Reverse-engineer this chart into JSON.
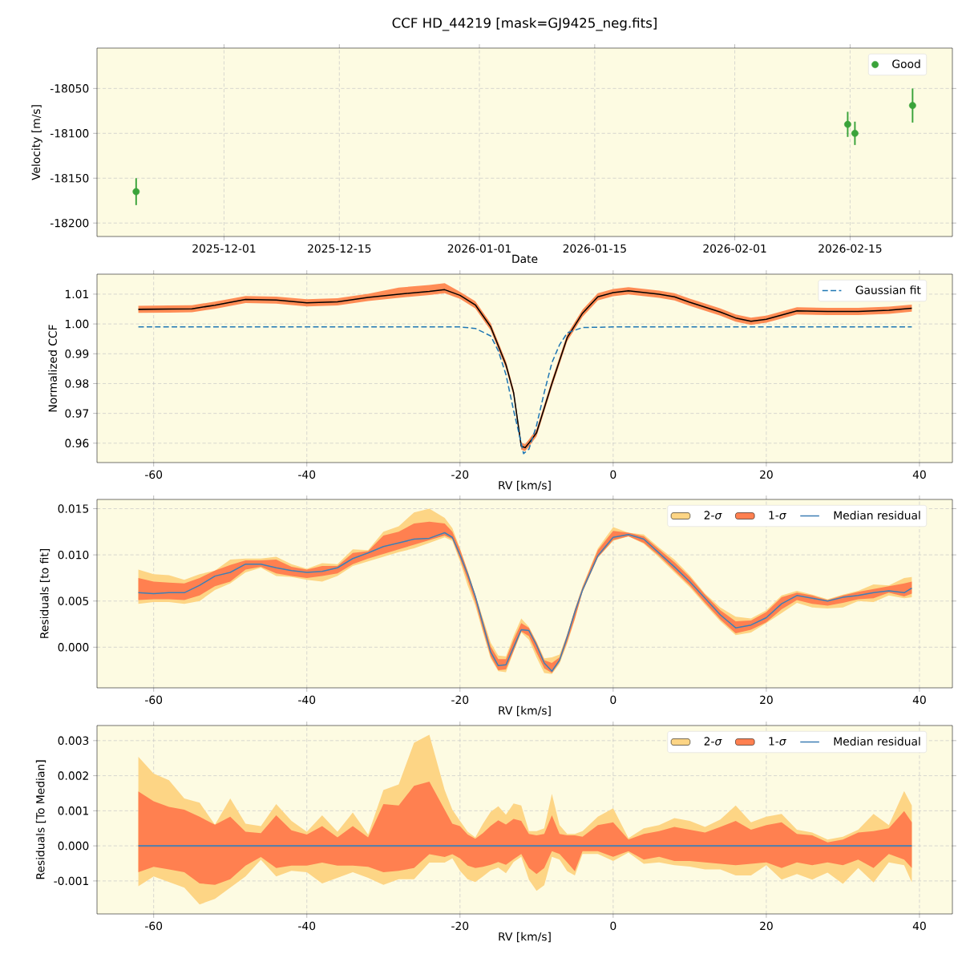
{
  "chart_data": [
    {
      "type": "scatter",
      "title": "CCF HD_44219 [mask=GJ9425_neg.fits]",
      "xlabel": "Date",
      "ylabel": "Velocity [m/s]",
      "x": [
        "2025-11-20T08:00",
        "2026-02-14T17:00",
        "2026-02-15T14:00",
        "2026-02-22T14:00"
      ],
      "series": [
        {
          "name": "Good",
          "color": "#3aa33a",
          "values": [
            -18165,
            -18090,
            -18100,
            -18069
          ],
          "errors": [
            15,
            14,
            13,
            19
          ]
        }
      ],
      "xlim": [
        "2025-11-15T14:00",
        "2026-02-27T10:00"
      ],
      "xticks": [
        "2025-12-01",
        "2025-12-15",
        "2026-01-01",
        "2026-01-15",
        "2026-02-01",
        "2026-02-15"
      ],
      "ylim": [
        -18215,
        -18005
      ],
      "yticks": [
        -18200,
        -18150,
        -18100,
        -18050
      ],
      "grid": true,
      "legend": "top right",
      "marker": "circle"
    },
    {
      "type": "line",
      "xlabel": "RV [km/s]",
      "ylabel": "Normalized CCF",
      "series": [
        {
          "type": "line",
          "color": "#ff8c55",
          "values": [
            null,
            null,
            null,
            null,
            null,
            null,
            null,
            null,
            null,
            null,
            null,
            null,
            null,
            null,
            null,
            null,
            null,
            null,
            null,
            null,
            null,
            null,
            null,
            null,
            null,
            null,
            null,
            null,
            null,
            null,
            null,
            null,
            null,
            null,
            null,
            null,
            null,
            null,
            null
          ],
          "x": [
            -62,
            -58,
            -55,
            -52,
            -48,
            -44,
            -40,
            -36,
            -32,
            -28,
            -24,
            -22,
            -20,
            -18,
            -16,
            -14,
            -13,
            -12,
            -11.5,
            -11,
            -10,
            -8,
            -6,
            -4,
            -2,
            0,
            2,
            6,
            8,
            10,
            14,
            16,
            18,
            20,
            24,
            28,
            32,
            36,
            39
          ],
          "lower": [
            1.0037,
            1.0038,
            1.0039,
            1.0051,
            1.007,
            1.0068,
            1.0059,
            1.0062,
            1.0077,
            1.0088,
            1.0097,
            1.0103,
            1.0084,
            1.0052,
            0.9979,
            0.9851,
            0.9758,
            0.9578,
            0.9573,
            0.9588,
            0.9623,
            0.9788,
            0.9942,
            1.0024,
            1.0079,
            1.0093,
            1.0099,
            1.0088,
            1.0079,
            1.0061,
            1.0028,
            1.0008,
            0.9997,
            1.0004,
            1.0032,
            1.003,
            1.003,
            1.0034,
            1.0041
          ],
          "upper": [
            1.0061,
            1.0062,
            1.0063,
            1.0075,
            1.0094,
            1.0092,
            1.0083,
            1.0086,
            1.0101,
            1.0122,
            1.0131,
            1.0137,
            1.0108,
            1.0076,
            1.0003,
            0.9875,
            0.9782,
            0.9602,
            0.9597,
            0.9612,
            0.9647,
            0.9812,
            0.9966,
            1.0048,
            1.0103,
            1.0117,
            1.0123,
            1.0112,
            1.0103,
            1.0085,
            1.0052,
            1.0032,
            1.0021,
            1.0028,
            1.0056,
            1.0054,
            1.0054,
            1.0058,
            1.0065
          ]
        },
        {
          "type": "line",
          "color": "#000000",
          "x": [
            -62,
            -58,
            -55,
            -52,
            -48,
            -44,
            -40,
            -36,
            -32,
            -28,
            -24,
            -22,
            -20,
            -18,
            -16,
            -14,
            -13,
            -12,
            -11.5,
            -11,
            -10,
            -8,
            -6,
            -4,
            -2,
            0,
            2,
            6,
            8,
            10,
            14,
            16,
            18,
            20,
            24,
            28,
            32,
            36,
            39
          ],
          "values": [
            1.0049,
            1.005,
            1.0051,
            1.0063,
            1.0082,
            1.008,
            1.0071,
            1.0074,
            1.0089,
            1.01,
            1.0109,
            1.0115,
            1.0096,
            1.0064,
            0.9991,
            0.9863,
            0.977,
            0.959,
            0.9585,
            0.96,
            0.9635,
            0.98,
            0.9954,
            1.0036,
            1.0091,
            1.0105,
            1.0111,
            1.01,
            1.0091,
            1.0073,
            1.004,
            1.002,
            1.0009,
            1.0016,
            1.0044,
            1.0042,
            1.0042,
            1.0046,
            1.0053
          ]
        },
        {
          "name": "Gaussian fit",
          "type": "line",
          "color": "#1f77b4",
          "line_style": "dashed",
          "x": [
            -62,
            -20,
            -18,
            -16,
            -15,
            -14,
            -13,
            -12,
            -11.7,
            -11,
            -10,
            -9,
            -8,
            -7,
            -6,
            -4,
            0,
            39
          ],
          "values": [
            0.999,
            0.999,
            0.9985,
            0.996,
            0.991,
            0.983,
            0.971,
            0.96,
            0.9565,
            0.958,
            0.966,
            0.977,
            0.987,
            0.993,
            0.997,
            0.9988,
            0.999,
            0.999
          ]
        }
      ],
      "xlim": [
        -67.4,
        44.3
      ],
      "xticks": [
        -60,
        -40,
        -20,
        0,
        20,
        40
      ],
      "ylim": [
        0.9535,
        1.0167
      ],
      "yticks": [
        0.96,
        0.97,
        0.98,
        0.99,
        {
          "value": 1.0,
          "label": "1.00"
        },
        1.01
      ],
      "grid": true,
      "legend": "top right"
    },
    {
      "type": "line",
      "xlabel": "RV [km/s]",
      "ylabel": "Residuals [to fit]",
      "x": [
        -62,
        -60,
        -58,
        -56,
        -54,
        -52,
        -50,
        -48,
        -46,
        -44,
        -42,
        -40,
        -38,
        -36,
        -34,
        -32,
        -30,
        -28,
        -26,
        -24,
        -22,
        -21,
        -20,
        -19,
        -18,
        -17,
        -16,
        -15,
        -14,
        -13,
        -12,
        -11,
        -10,
        -9,
        -8,
        -7,
        -6,
        -5,
        -4,
        -2,
        0,
        2,
        4,
        6,
        8,
        10,
        12,
        14,
        16,
        18,
        20,
        22,
        24,
        26,
        28,
        30,
        32,
        34,
        36,
        38,
        39
      ],
      "series": [
        {
          "name": "2-*σ*",
          "type": "line",
          "color": "#fdd585",
          "values": [
            null,
            null,
            null,
            null,
            null,
            null,
            null,
            null,
            null,
            null,
            null,
            null,
            null,
            null,
            null,
            null,
            null,
            null,
            null,
            null,
            null,
            null,
            null,
            null,
            null,
            null,
            null,
            null,
            null,
            null,
            null,
            null,
            null,
            null,
            null,
            null,
            null,
            null,
            null,
            null,
            null,
            null,
            null,
            null,
            null,
            null,
            null,
            null,
            null,
            null,
            null,
            null,
            null,
            null,
            null,
            null,
            null,
            null,
            null,
            null,
            null
          ],
          "upper": [
            0.0084,
            0.0079,
            0.0078,
            0.0073,
            0.0079,
            0.0083,
            0.0095,
            0.0096,
            0.0096,
            0.0098,
            0.009,
            0.0085,
            0.0091,
            0.009,
            0.0106,
            0.0105,
            0.0125,
            0.0131,
            0.0146,
            0.015,
            0.014,
            0.0129,
            0.0107,
            0.0083,
            0.0057,
            0.0031,
            0.0005,
            -0.0009,
            -0.001,
            0.0012,
            0.0031,
            0.0022,
            0.0006,
            -0.0012,
            -0.0011,
            -0.0008,
            0.0014,
            0.0041,
            0.0066,
            0.0107,
            0.013,
            0.0124,
            0.0122,
            0.0108,
            0.0095,
            0.0078,
            0.0058,
            0.0043,
            0.0033,
            0.0031,
            0.004,
            0.0056,
            0.0061,
            0.0057,
            0.0052,
            0.0057,
            0.0061,
            0.0068,
            0.0067,
            0.0075,
            0.0076
          ],
          "lower": [
            0.0047,
            0.0049,
            0.0049,
            0.0047,
            0.005,
            0.0062,
            0.0069,
            0.0081,
            0.0086,
            0.0077,
            0.0076,
            0.0073,
            0.0071,
            0.0077,
            0.0088,
            0.0093,
            0.0098,
            0.0103,
            0.0107,
            0.0113,
            0.0119,
            0.0115,
            0.0093,
            0.0067,
            0.0045,
            0.0016,
            -0.0012,
            -0.0026,
            -0.0027,
            -0.0005,
            0.0016,
            0.0008,
            -0.0011,
            -0.0028,
            -0.0029,
            -0.0018,
            0.0004,
            0.003,
            0.006,
            0.0097,
            0.0115,
            0.012,
            0.0112,
            0.0097,
            0.0081,
            0.0065,
            0.0046,
            0.0028,
            0.0013,
            0.0016,
            0.0026,
            0.0037,
            0.0048,
            0.0043,
            0.0042,
            0.0043,
            0.005,
            0.0049,
            0.0056,
            0.0053,
            0.0054
          ]
        },
        {
          "name": "1-*σ*",
          "type": "line",
          "color": "#ff8050",
          "values": [
            null,
            null,
            null,
            null,
            null,
            null,
            null,
            null,
            null,
            null,
            null,
            null,
            null,
            null,
            null,
            null,
            null,
            null,
            null,
            null,
            null,
            null,
            null,
            null,
            null,
            null,
            null,
            null,
            null,
            null,
            null,
            null,
            null,
            null,
            null,
            null,
            null,
            null,
            null,
            null,
            null,
            null,
            null,
            null,
            null,
            null,
            null,
            null,
            null,
            null,
            null,
            null,
            null,
            null,
            null,
            null,
            null,
            null,
            null,
            null,
            null
          ],
          "upper": [
            0.0075,
            0.0071,
            0.007,
            0.0069,
            0.0075,
            0.0083,
            0.0089,
            0.0094,
            0.0094,
            0.0095,
            0.0087,
            0.0084,
            0.0088,
            0.0088,
            0.0102,
            0.0104,
            0.0121,
            0.0125,
            0.0134,
            0.0136,
            0.0134,
            0.0125,
            0.0106,
            0.0082,
            0.0057,
            0.0029,
            0.0001,
            -0.0013,
            -0.0013,
            0.0008,
            0.0026,
            0.0021,
            0.0005,
            -0.0014,
            -0.0017,
            -0.0011,
            0.0014,
            0.0041,
            0.0065,
            0.0105,
            0.0126,
            0.0124,
            0.012,
            0.0106,
            0.0092,
            0.0076,
            0.0057,
            0.004,
            0.0028,
            0.0029,
            0.0038,
            0.0054,
            0.0059,
            0.0056,
            0.0051,
            0.0056,
            0.006,
            0.0063,
            0.0066,
            0.0069,
            0.0071
          ],
          "lower": [
            0.0051,
            0.0052,
            0.0052,
            0.0051,
            0.0056,
            0.0066,
            0.0071,
            0.0084,
            0.0087,
            0.008,
            0.0077,
            0.0075,
            0.0077,
            0.008,
            0.009,
            0.0096,
            0.0101,
            0.0106,
            0.0111,
            0.0116,
            0.0121,
            0.0117,
            0.0096,
            0.0073,
            0.0049,
            0.0019,
            -0.001,
            -0.0025,
            -0.0024,
            -0.0004,
            0.0017,
            0.0012,
            -0.0006,
            -0.0023,
            -0.0028,
            -0.0016,
            0.0006,
            0.0031,
            0.006,
            0.0097,
            0.0116,
            0.012,
            0.0113,
            0.0099,
            0.0083,
            0.0067,
            0.0048,
            0.003,
            0.0015,
            0.0019,
            0.0027,
            0.0041,
            0.0051,
            0.0047,
            0.0045,
            0.0048,
            0.0052,
            0.0053,
            0.0059,
            0.0055,
            0.0058
          ]
        },
        {
          "name": "Median residual",
          "type": "line",
          "color": "#3f7fb5",
          "values": [
            0.0059,
            0.0058,
            0.0059,
            0.0059,
            0.0067,
            0.0077,
            0.0081,
            0.009,
            0.009,
            0.0086,
            0.0083,
            0.0081,
            0.0082,
            0.0086,
            0.0096,
            0.0102,
            0.0109,
            0.0113,
            0.0117,
            0.0118,
            0.0124,
            0.0119,
            0.01,
            0.0079,
            0.0055,
            0.0025,
            -0.0005,
            -0.002,
            -0.0019,
            0.0,
            0.0019,
            0.0018,
            0.0002,
            -0.0017,
            -0.0026,
            -0.0014,
            0.0011,
            0.0038,
            0.0062,
            0.0099,
            0.0119,
            0.0122,
            0.0117,
            0.0102,
            0.0087,
            0.0071,
            0.0053,
            0.0035,
            0.0021,
            0.0024,
            0.0032,
            0.0047,
            0.0056,
            0.0053,
            0.005,
            0.0054,
            0.0056,
            0.0059,
            0.0061,
            0.0059,
            0.0064
          ]
        }
      ],
      "xlim": [
        -67.4,
        44.3
      ],
      "xticks": [
        -60,
        -40,
        -20,
        0,
        20,
        40
      ],
      "ylim": [
        -0.0044,
        0.016
      ],
      "yticks": [
        {
          "value": 0.0,
          "label": "0.000"
        },
        0.005,
        {
          "value": 0.01,
          "label": "0.010"
        },
        0.015
      ],
      "grid": true,
      "legend": "top right"
    },
    {
      "type": "line",
      "xlabel": "RV [km/s]",
      "ylabel": "Residuals [To Median]",
      "x": [
        -62,
        -60,
        -58,
        -56,
        -54,
        -52,
        -50,
        -48,
        -46,
        -44,
        -42,
        -40,
        -38,
        -36,
        -34,
        -32,
        -30,
        -28,
        -26,
        -24,
        -22,
        -21,
        -20,
        -19,
        -18,
        -17,
        -16,
        -15,
        -14,
        -13,
        -12,
        -11,
        -10,
        -9,
        -8,
        -7,
        -6,
        -5,
        -4,
        -2,
        0,
        2,
        4,
        6,
        8,
        10,
        12,
        14,
        16,
        18,
        20,
        22,
        24,
        26,
        28,
        30,
        32,
        34,
        36,
        38,
        39
      ],
      "series": [
        {
          "name": "2-*σ*",
          "type": "line",
          "color": "#fdd585",
          "values": [
            null,
            null,
            null,
            null,
            null,
            null,
            null,
            null,
            null,
            null,
            null,
            null,
            null,
            null,
            null,
            null,
            null,
            null,
            null,
            null,
            null,
            null,
            null,
            null,
            null,
            null,
            null,
            null,
            null,
            null,
            null,
            null,
            null,
            null,
            null,
            null,
            null,
            null,
            null,
            null,
            null,
            null,
            null,
            null,
            null,
            null,
            null,
            null,
            null,
            null,
            null,
            null,
            null,
            null,
            null,
            null,
            null,
            null,
            null,
            null,
            null
          ],
          "upper": [
            0.00254,
            0.00206,
            0.00187,
            0.00135,
            0.00123,
            0.0006,
            0.00135,
            0.00063,
            0.00056,
            0.00119,
            0.00071,
            0.0004,
            0.00087,
            0.0004,
            0.00095,
            0.00032,
            0.00159,
            0.00175,
            0.00294,
            0.00317,
            0.00159,
            0.00103,
            0.00071,
            0.0004,
            0.00024,
            0.00063,
            0.00097,
            0.00113,
            0.00089,
            0.00121,
            0.00115,
            0.00042,
            0.00042,
            0.0005,
            0.00148,
            0.00059,
            0.00034,
            0.00034,
            0.00042,
            0.00083,
            0.00107,
            0.00022,
            0.0005,
            0.00059,
            0.00079,
            0.00071,
            0.00054,
            0.00075,
            0.00115,
            0.00067,
            0.00083,
            0.00091,
            0.00046,
            0.00038,
            0.00018,
            0.00026,
            0.00046,
            0.00091,
            0.00059,
            0.00156,
            0.00115
          ],
          "lower": [
            -0.00115,
            -0.00087,
            -0.00103,
            -0.00119,
            -0.00167,
            -0.00151,
            -0.00119,
            -0.00087,
            -0.0004,
            -0.00087,
            -0.00071,
            -0.00075,
            -0.00107,
            -0.00091,
            -0.00075,
            -0.00091,
            -0.00111,
            -0.00095,
            -0.00095,
            -0.00048,
            -0.00048,
            -0.00036,
            -0.00071,
            -0.00095,
            -0.00103,
            -0.00087,
            -0.0007,
            -0.00062,
            -0.00078,
            -0.00046,
            -0.00031,
            -0.00096,
            -0.00128,
            -0.00112,
            -0.00031,
            -0.00039,
            -0.00072,
            -0.00084,
            -0.00023,
            -0.00023,
            -0.00043,
            -0.00019,
            -0.00051,
            -0.00047,
            -0.00055,
            -0.00059,
            -0.00067,
            -0.00067,
            -0.00084,
            -0.00084,
            -0.00055,
            -0.00096,
            -0.0008,
            -0.00096,
            -0.00076,
            -0.00108,
            -0.00063,
            -0.00104,
            -0.00047,
            -0.00055,
            -0.00104
          ]
        },
        {
          "name": "1-*σ*",
          "type": "line",
          "color": "#ff8050",
          "values": [
            null,
            null,
            null,
            null,
            null,
            null,
            null,
            null,
            null,
            null,
            null,
            null,
            null,
            null,
            null,
            null,
            null,
            null,
            null,
            null,
            null,
            null,
            null,
            null,
            null,
            null,
            null,
            null,
            null,
            null,
            null,
            null,
            null,
            null,
            null,
            null,
            null,
            null,
            null,
            null,
            null,
            null,
            null,
            null,
            null,
            null,
            null,
            null,
            null,
            null,
            null,
            null,
            null,
            null,
            null,
            null,
            null,
            null,
            null,
            null,
            null
          ],
          "upper": [
            0.00155,
            0.00127,
            0.00111,
            0.00103,
            0.00083,
            0.0006,
            0.00083,
            0.0004,
            0.00036,
            0.00087,
            0.00044,
            0.00032,
            0.00056,
            0.00024,
            0.00056,
            0.00024,
            0.00119,
            0.00115,
            0.00171,
            0.00183,
            0.00103,
            0.00063,
            0.00056,
            0.00032,
            0.0002,
            0.00036,
            0.00057,
            0.00073,
            0.00061,
            0.00077,
            0.00071,
            0.00034,
            0.0003,
            0.00034,
            0.00087,
            0.00034,
            0.0003,
            0.0003,
            0.00026,
            0.00059,
            0.00067,
            0.00018,
            0.00034,
            0.00042,
            0.00054,
            0.00046,
            0.00038,
            0.00054,
            0.00071,
            0.00046,
            0.00059,
            0.00067,
            0.00034,
            0.0003,
            0.0001,
            0.00018,
            0.00038,
            0.00042,
            0.0005,
            0.00099,
            0.00067
          ],
          "lower": [
            -0.00075,
            -0.0006,
            -0.00067,
            -0.00075,
            -0.00107,
            -0.00111,
            -0.00095,
            -0.00056,
            -0.00032,
            -0.00063,
            -0.00056,
            -0.00056,
            -0.00048,
            -0.00056,
            -0.00056,
            -0.0006,
            -0.00075,
            -0.00071,
            -0.00063,
            -0.00024,
            -0.00032,
            -0.00024,
            -0.00036,
            -0.00056,
            -0.00063,
            -0.0006,
            -0.00054,
            -0.00046,
            -0.00054,
            -0.00038,
            -0.00023,
            -0.00063,
            -0.0008,
            -0.00063,
            -0.00015,
            -0.00023,
            -0.00047,
            -0.00072,
            -0.00015,
            -0.00015,
            -0.00031,
            -0.00015,
            -0.00039,
            -0.00031,
            -0.00043,
            -0.00043,
            -0.00047,
            -0.00051,
            -0.00055,
            -0.00051,
            -0.00047,
            -0.00063,
            -0.00047,
            -0.00055,
            -0.00047,
            -0.00055,
            -0.00039,
            -0.00063,
            -0.00023,
            -0.00039,
            -0.00063
          ]
        },
        {
          "name": "Median residual",
          "type": "line",
          "color": "#3f7fb5",
          "x": [
            -62,
            39
          ],
          "values": [
            0,
            0
          ]
        }
      ],
      "xlim": [
        -67.4,
        44.3
      ],
      "xticks": [
        -60,
        -40,
        -20,
        0,
        20,
        40
      ],
      "ylim": [
        -0.00194,
        0.00343
      ],
      "yticks": [
        -0.001,
        {
          "value": 0.0,
          "label": "0.000"
        },
        0.001,
        0.002,
        0.003
      ],
      "grid": true,
      "legend": "top right"
    }
  ]
}
